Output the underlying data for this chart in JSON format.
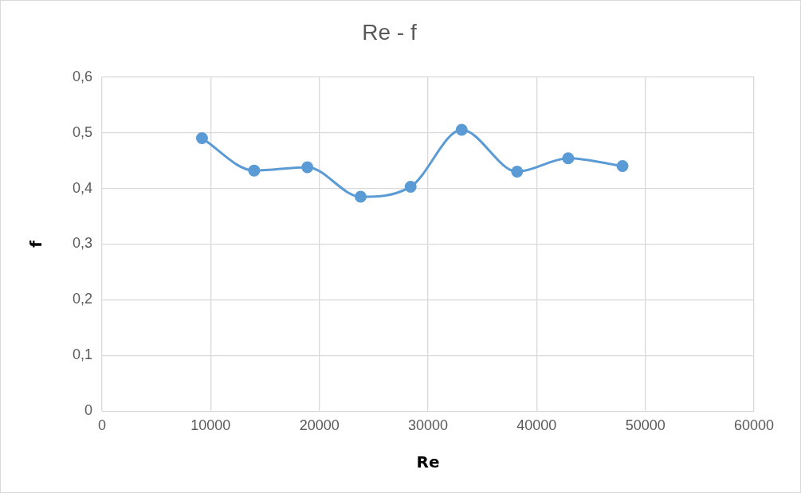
{
  "chart_data": {
    "type": "line",
    "title": "Re - f",
    "xlabel": "Re",
    "ylabel": "f",
    "x": [
      9200,
      14000,
      18900,
      23800,
      28400,
      33100,
      38200,
      42900,
      47900
    ],
    "series": [
      {
        "color": "#5b9bd5",
        "values": [
          0.49,
          0.432,
          0.438,
          0.385,
          0.403,
          0.505,
          0.43,
          0.454,
          0.44
        ]
      }
    ],
    "xlim": [
      0,
      60000
    ],
    "xticks": [
      0,
      10000,
      20000,
      30000,
      40000,
      50000,
      60000
    ],
    "ylim": [
      0,
      0.6
    ],
    "yticks": [
      {
        "value": 0,
        "label": "0"
      },
      {
        "value": 0.1,
        "label": "0,1"
      },
      {
        "value": 0.2,
        "label": "0,2"
      },
      {
        "value": 0.3,
        "label": "0,3"
      },
      {
        "value": 0.4,
        "label": "0,4"
      },
      {
        "value": 0.5,
        "label": "0,5"
      },
      {
        "value": 0.6,
        "label": "0,6"
      }
    ],
    "grid": true,
    "legend": false,
    "marker": "circle",
    "line_style": "solid"
  }
}
